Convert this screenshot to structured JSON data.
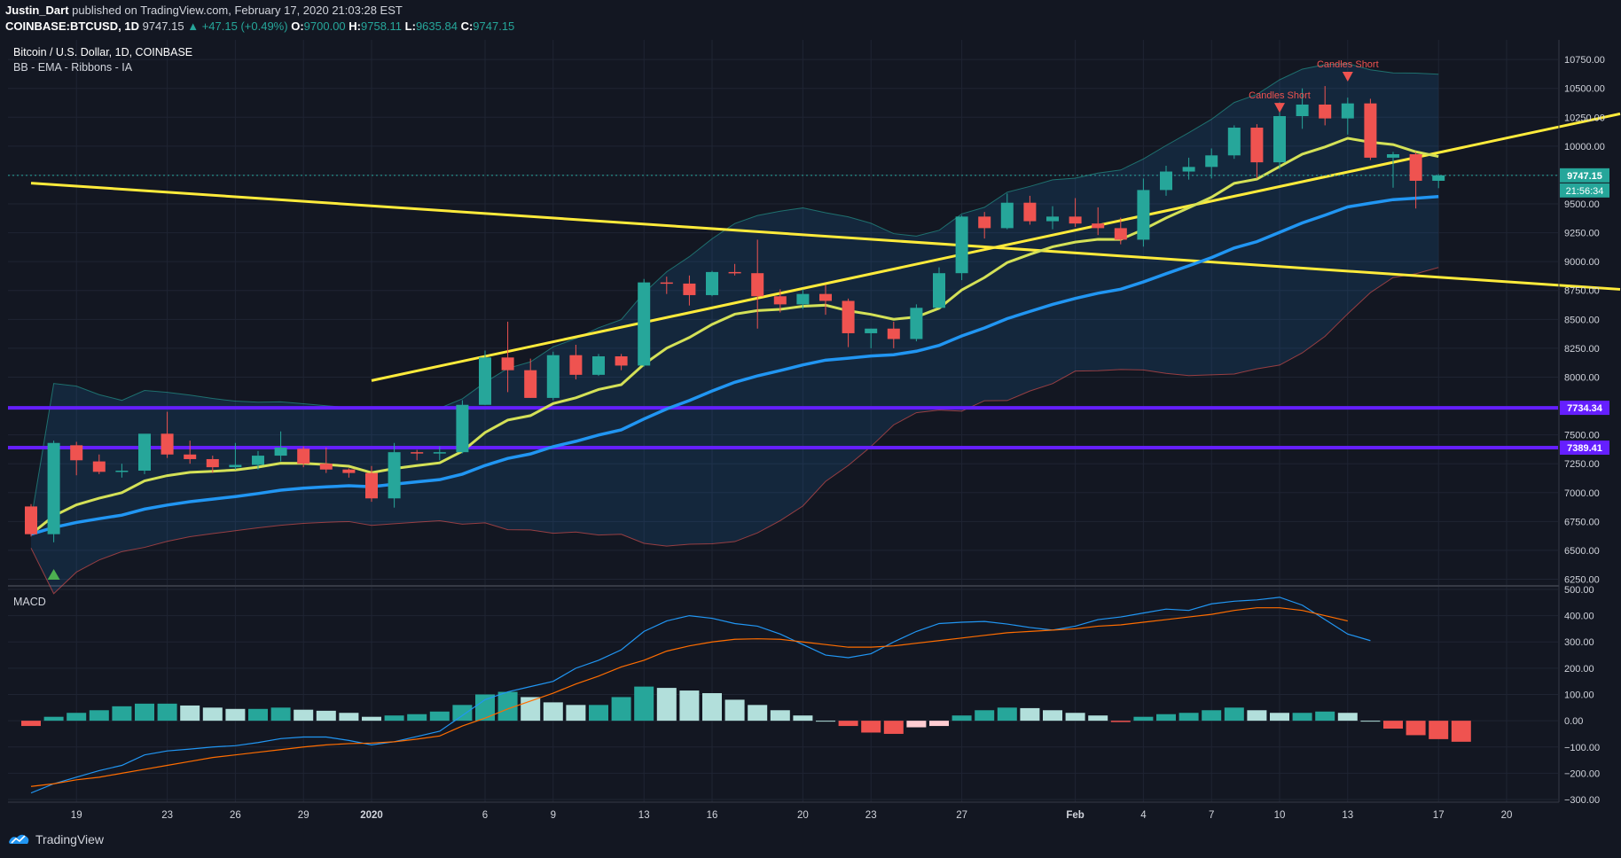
{
  "header": {
    "author": "Justin_Dart",
    "published_text": "published on TradingView.com, February 17, 2020 21:03:28 EST",
    "symbol": "COINBASE:BTCUSD, 1D",
    "last": "9747.15",
    "change": "+47.15 (+0.49%)",
    "o_label": "O:",
    "o": "9700.00",
    "h_label": "H:",
    "h": "9758.11",
    "l_label": "L:",
    "l": "9635.84",
    "c_label": "C:",
    "c": "9747.15"
  },
  "legend": {
    "title": "Bitcoin / U.S. Dollar, 1D, COINBASE",
    "indicators": "BB - EMA - Ribbons - IA",
    "macd": "MACD"
  },
  "footer": {
    "brand": "TradingView"
  },
  "price_tags": {
    "last": "9747.15",
    "countdown": "21:56:34",
    "level1": "7734.34",
    "level2": "7389.41"
  },
  "annotations": {
    "short1": "Candles Short",
    "short2": "Candles Short"
  },
  "colors": {
    "bull": "#26a69a",
    "bear": "#ef5350",
    "ema_fast": "#d4e157",
    "ema_slow": "#2196f3",
    "trend": "#ffeb3b",
    "level": "#651fff",
    "macd": "#2196f3",
    "signal": "#ff6d00"
  },
  "chart_data": [
    {
      "type": "candlestick",
      "title": "Bitcoin / U.S. Dollar, 1D, COINBASE",
      "y_ticks": [
        10750,
        10500,
        10250,
        10000,
        9750,
        9500,
        9250,
        9000,
        8750,
        8500,
        8250,
        8000,
        7500,
        7250,
        7000,
        6750,
        6500,
        6250
      ],
      "y_tick_labels": [
        "10750.00",
        "10500.00",
        "10250.00",
        "10000.00",
        "9750.00",
        "9500.00",
        "9250.00",
        "9000.00",
        "8750.00",
        "8500.00",
        "8250.00",
        "8000.00",
        "7500.00",
        "7250.00",
        "7000.00",
        "6750.00",
        "6500.00",
        "6250.00"
      ],
      "ylim": [
        6200,
        10920
      ],
      "x_ticks": [
        19,
        23,
        26,
        29,
        "2020",
        6,
        9,
        13,
        16,
        20,
        23,
        27,
        "Feb",
        4,
        7,
        10,
        13,
        17,
        20
      ],
      "x_tick_positions": [
        2,
        6,
        9,
        12,
        15,
        20,
        23,
        27,
        30,
        34,
        37,
        41,
        46,
        49,
        52,
        55,
        58,
        62,
        65
      ],
      "candles": [
        [
          6880,
          6900,
          6620,
          6640
        ],
        [
          6640,
          7450,
          6570,
          7430
        ],
        [
          7410,
          7440,
          7150,
          7280
        ],
        [
          7270,
          7330,
          7160,
          7180
        ],
        [
          7180,
          7250,
          7130,
          7190
        ],
        [
          7190,
          7480,
          7160,
          7510
        ],
        [
          7510,
          7700,
          7300,
          7330
        ],
        [
          7330,
          7450,
          7250,
          7290
        ],
        [
          7290,
          7320,
          7170,
          7220
        ],
        [
          7220,
          7430,
          7200,
          7240
        ],
        [
          7240,
          7360,
          7200,
          7320
        ],
        [
          7320,
          7530,
          7270,
          7390
        ],
        [
          7380,
          7400,
          7220,
          7250
        ],
        [
          7250,
          7390,
          7170,
          7200
        ],
        [
          7200,
          7210,
          7130,
          7170
        ],
        [
          7170,
          7230,
          6920,
          6950
        ],
        [
          6950,
          7430,
          6870,
          7350
        ],
        [
          7350,
          7370,
          7280,
          7340
        ],
        [
          7340,
          7400,
          7280,
          7350
        ],
        [
          7350,
          7800,
          7340,
          7760
        ],
        [
          7760,
          8230,
          7760,
          8170
        ],
        [
          8170,
          8480,
          7870,
          8060
        ],
        [
          8060,
          8160,
          7820,
          7820
        ],
        [
          7820,
          8220,
          7800,
          8190
        ],
        [
          8190,
          8280,
          7980,
          8020
        ],
        [
          8020,
          8200,
          8010,
          8180
        ],
        [
          8180,
          8200,
          8060,
          8100
        ],
        [
          8100,
          8850,
          8090,
          8820
        ],
        [
          8820,
          8870,
          8720,
          8810
        ],
        [
          8810,
          8880,
          8620,
          8710
        ],
        [
          8710,
          8920,
          8700,
          8910
        ],
        [
          8910,
          8980,
          8880,
          8900
        ],
        [
          8900,
          9190,
          8420,
          8700
        ],
        [
          8700,
          8760,
          8560,
          8630
        ],
        [
          8630,
          8760,
          8590,
          8720
        ],
        [
          8720,
          8800,
          8540,
          8660
        ],
        [
          8660,
          8680,
          8260,
          8380
        ],
        [
          8380,
          8420,
          8250,
          8420
        ],
        [
          8420,
          8480,
          8250,
          8330
        ],
        [
          8330,
          8630,
          8310,
          8600
        ],
        [
          8600,
          8950,
          8600,
          8900
        ],
        [
          8900,
          9400,
          8840,
          9390
        ],
        [
          9390,
          9430,
          9200,
          9290
        ],
        [
          9290,
          9590,
          9280,
          9510
        ],
        [
          9510,
          9570,
          9320,
          9350
        ],
        [
          9350,
          9480,
          9280,
          9390
        ],
        [
          9390,
          9550,
          9300,
          9330
        ],
        [
          9330,
          9470,
          9230,
          9290
        ],
        [
          9290,
          9380,
          9150,
          9190
        ],
        [
          9190,
          9720,
          9130,
          9620
        ],
        [
          9620,
          9830,
          9570,
          9780
        ],
        [
          9780,
          9900,
          9710,
          9820
        ],
        [
          9820,
          9980,
          9720,
          9920
        ],
        [
          9920,
          10180,
          9890,
          10160
        ],
        [
          10160,
          10190,
          9720,
          9860
        ],
        [
          9860,
          10380,
          9800,
          10260
        ],
        [
          10260,
          10500,
          10150,
          10360
        ],
        [
          10360,
          10520,
          10180,
          10240
        ],
        [
          10240,
          10420,
          10100,
          10370
        ],
        [
          10370,
          10410,
          9880,
          9900
        ],
        [
          9900,
          9950,
          9640,
          9930
        ],
        [
          9930,
          9950,
          9460,
          9700
        ],
        [
          9700,
          9758,
          9636,
          9747
        ]
      ],
      "trend_lines": [
        {
          "from": [
            0,
            9680
          ],
          "to": [
            70,
            8760
          ]
        },
        {
          "from": [
            15,
            7970
          ],
          "to": [
            70,
            10280
          ]
        }
      ],
      "horizontal_levels": [
        7734.34,
        7389.41
      ]
    },
    {
      "type": "line",
      "title": "MACD",
      "y_ticks": [
        500,
        400,
        300,
        200,
        100,
        0,
        -100,
        -200,
        -300
      ],
      "y_tick_labels": [
        "500.00",
        "400.00",
        "300.00",
        "200.00",
        "100.00",
        "0.00",
        "−100.00",
        "−200.00",
        "−300.00"
      ],
      "ylim": [
        -310,
        510
      ],
      "series": [
        {
          "values": [
            -275,
            -240,
            -215,
            -190,
            -170,
            -130,
            -115,
            -108,
            -100,
            -95,
            -83,
            -68,
            -62,
            -62,
            -75,
            -92,
            -80,
            -60,
            -40,
            20,
            80,
            110,
            130,
            150,
            200,
            230,
            270,
            340,
            380,
            400,
            390,
            370,
            360,
            330,
            290,
            250,
            240,
            255,
            300,
            340,
            370,
            375,
            378,
            368,
            355,
            345,
            360,
            385,
            395,
            410,
            425,
            420,
            445,
            455,
            460,
            470,
            440,
            385,
            330,
            305
          ]
        },
        {
          "values": [
            -250,
            -240,
            -225,
            -215,
            -200,
            -185,
            -170,
            -155,
            -140,
            -130,
            -120,
            -110,
            -100,
            -92,
            -87,
            -85,
            -80,
            -70,
            -58,
            -20,
            10,
            45,
            75,
            105,
            140,
            170,
            205,
            230,
            265,
            285,
            300,
            310,
            312,
            310,
            300,
            290,
            280,
            280,
            285,
            295,
            305,
            315,
            325,
            335,
            340,
            345,
            350,
            360,
            365,
            375,
            385,
            395,
            405,
            420,
            430,
            430,
            420,
            400,
            380
          ]
        },
        {
          "values": [
            -20,
            15,
            30,
            40,
            55,
            65,
            65,
            58,
            50,
            45,
            45,
            50,
            42,
            38,
            30,
            15,
            20,
            25,
            35,
            60,
            100,
            110,
            90,
            70,
            60,
            60,
            90,
            130,
            125,
            115,
            105,
            80,
            60,
            40,
            20,
            0,
            -20,
            -45,
            -50,
            -25,
            -20,
            20,
            40,
            50,
            48,
            40,
            30,
            20,
            -5,
            15,
            25,
            30,
            40,
            50,
            40,
            30,
            30,
            35,
            30,
            0,
            -30,
            -55,
            -70,
            -80
          ]
        }
      ]
    }
  ]
}
